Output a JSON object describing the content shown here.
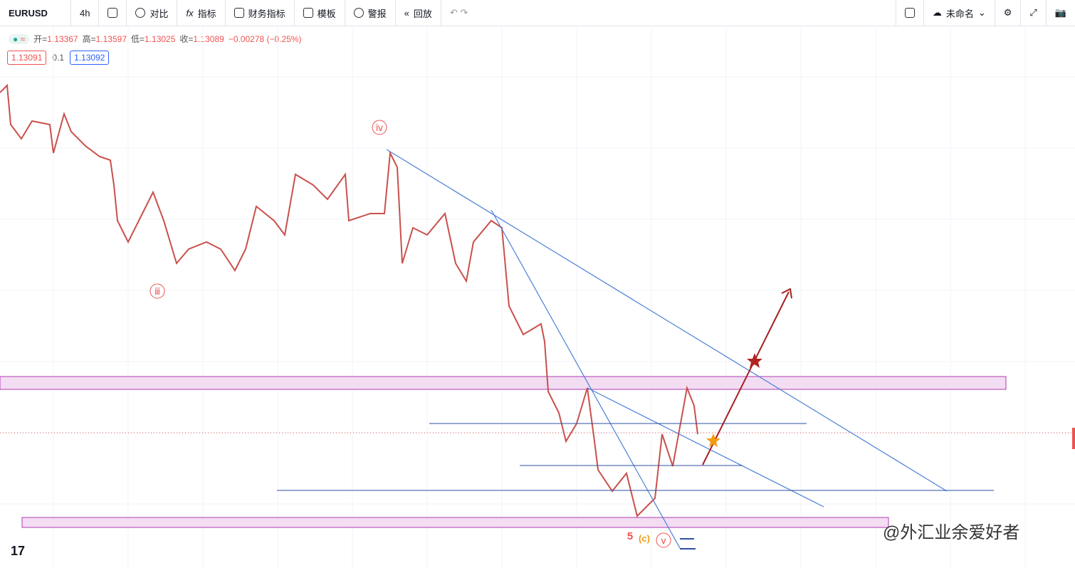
{
  "toolbar": {
    "symbol": "EURUSD",
    "interval": "4h",
    "items": [
      "对比",
      "指标",
      "财务指标",
      "模板",
      "警报",
      "回放"
    ],
    "layout_name": "未命名"
  },
  "legend": {
    "ohlc": [
      {
        "label": "开=",
        "value": "1.13367"
      },
      {
        "label": "高=",
        "value": "1.13597"
      },
      {
        "label": "低=",
        "value": "1.13025"
      },
      {
        "label": "收=",
        "value": "1.13089"
      }
    ],
    "change": "−0.00278 (−0.25%)",
    "sell": "1.13091",
    "spread": "0.1",
    "buy": "1.13092"
  },
  "annotations": {
    "wave_iii": "ⅲ",
    "wave_iv": "ⅳ",
    "wave_5": "5",
    "wave_c": "(c)",
    "wave_v": "ⅴ"
  },
  "watermark": "@外汇业余爱好者"
}
